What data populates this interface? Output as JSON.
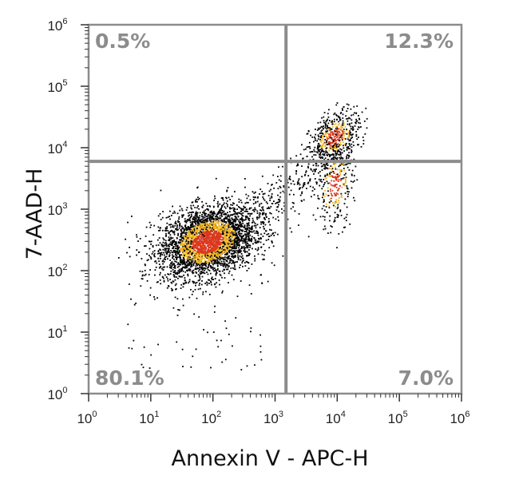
{
  "chart_data": {
    "type": "scatter",
    "xlabel": "Annexin V - APC-H",
    "ylabel": "7-AAD-H",
    "x_scale": "log",
    "y_scale": "log",
    "xlim": [
      1,
      1000000
    ],
    "ylim": [
      1,
      1000000
    ],
    "x_ticks": [
      {
        "base": "10",
        "exp": "0"
      },
      {
        "base": "10",
        "exp": "1"
      },
      {
        "base": "10",
        "exp": "2"
      },
      {
        "base": "10",
        "exp": "3"
      },
      {
        "base": "10",
        "exp": "4"
      },
      {
        "base": "10",
        "exp": "5"
      },
      {
        "base": "10",
        "exp": "6"
      }
    ],
    "y_ticks": [
      {
        "base": "10",
        "exp": "0"
      },
      {
        "base": "10",
        "exp": "1"
      },
      {
        "base": "10",
        "exp": "2"
      },
      {
        "base": "10",
        "exp": "3"
      },
      {
        "base": "10",
        "exp": "4"
      },
      {
        "base": "10",
        "exp": "5"
      },
      {
        "base": "10",
        "exp": "6"
      }
    ],
    "gates": {
      "x": 1500,
      "y": 6000
    },
    "quadrants": {
      "upper_left": "0.5%",
      "upper_right": "12.3%",
      "lower_left": "80.1%",
      "lower_right": "7.0%"
    },
    "populations": [
      {
        "center_x": 80,
        "center_y": 300,
        "spread_x_decades": 0.38,
        "spread_y_decades": 0.28,
        "share": 0.8
      },
      {
        "center_x": 9000,
        "center_y": 15000,
        "spread_x_decades": 0.2,
        "spread_y_decades": 0.2,
        "share": 0.12
      },
      {
        "center_x": 9000,
        "center_y": 2500,
        "spread_x_decades": 0.15,
        "spread_y_decades": 0.35,
        "share": 0.07
      }
    ],
    "colors": {
      "gate": "#8c8c8c",
      "frame": "#8c8c8c",
      "low_density": "#000000",
      "mid_density": "#f2b31c",
      "high_density": "#d9381e"
    }
  }
}
